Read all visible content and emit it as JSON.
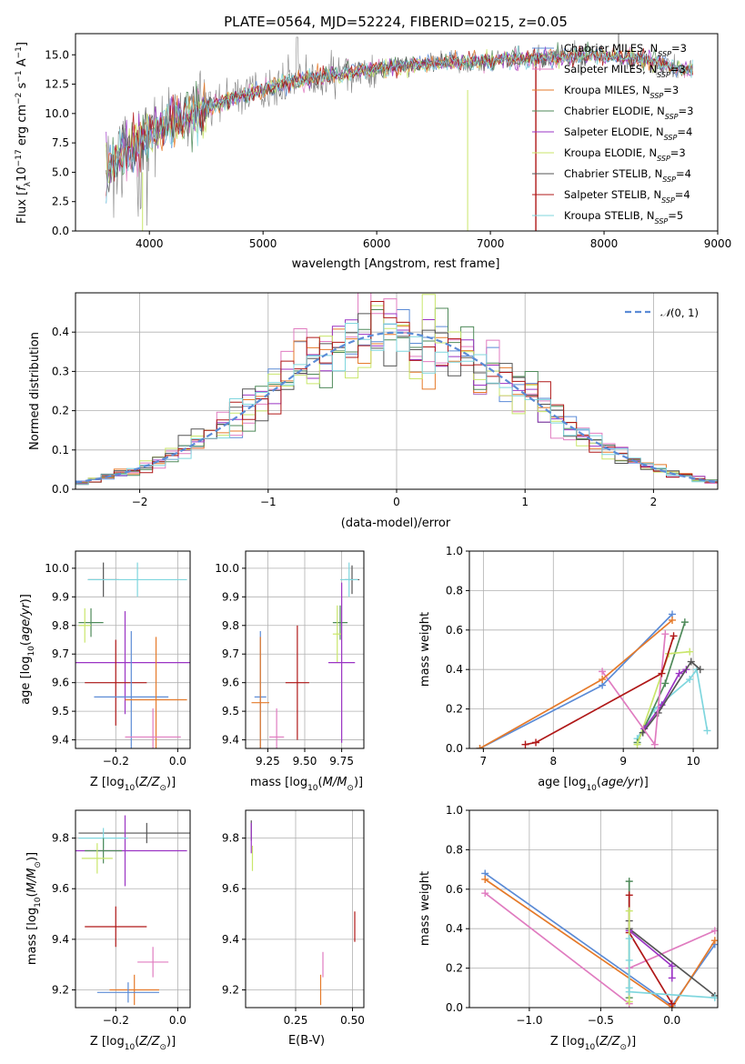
{
  "figure": {
    "title": "PLATE=0564, MJD=52224, FIBERID=0215, z=0.05"
  },
  "colors": {
    "Chabrier MILES": "#5b8bd6",
    "Salpeter MILES": "#e07cc0",
    "Kroupa MILES": "#e57a2a",
    "Chabrier ELODIE": "#4f8a5a",
    "Salpeter ELODIE": "#9b34c4",
    "Kroupa ELODIE": "#c9e66b",
    "Chabrier STELIB": "#555555",
    "Salpeter STELIB": "#b01818",
    "Kroupa STELIB": "#7fd6de"
  },
  "chart_data": [
    {
      "type": "line",
      "id": "spectrum",
      "xlabel": "wavelength [Angstrom, rest frame]",
      "ylabel": "Flux [f_λ 10^-17 erg cm^-2 s^-1 A^-1]",
      "xlim": [
        3350,
        9000
      ],
      "ylim": [
        0,
        16.8
      ],
      "xticks": [
        4000,
        5000,
        6000,
        7000,
        8000,
        9000
      ],
      "yticks": [
        0.0,
        2.5,
        5.0,
        7.5,
        10.0,
        12.5,
        15.0
      ],
      "legend_location": "top-right",
      "data_series": {
        "name": "data",
        "color": "#808080"
      },
      "continuum": {
        "x": [
          3600,
          3800,
          4000,
          4200,
          4400,
          4600,
          4800,
          5000,
          5200,
          5400,
          5600,
          5800,
          6000,
          6200,
          6400,
          6600,
          6800,
          7000,
          7200,
          7400,
          7600,
          7800,
          8000,
          8200,
          8400,
          8600,
          8800
        ],
        "y": [
          5.2,
          7.0,
          8.3,
          9.3,
          10.0,
          10.8,
          11.5,
          12.0,
          12.5,
          12.9,
          13.3,
          13.6,
          13.8,
          14.0,
          14.2,
          14.3,
          14.4,
          14.5,
          14.6,
          14.7,
          14.8,
          14.9,
          14.9,
          14.8,
          14.5,
          14.0,
          13.6
        ]
      },
      "series": [
        {
          "name": "Chabrier MILES",
          "nssp": "3"
        },
        {
          "name": "Salpeter MILES",
          "nssp": "3"
        },
        {
          "name": "Kroupa MILES",
          "nssp": "3"
        },
        {
          "name": "Chabrier ELODIE",
          "nssp": "3"
        },
        {
          "name": "Salpeter ELODIE",
          "nssp": "4"
        },
        {
          "name": "Kroupa ELODIE",
          "nssp": "3"
        },
        {
          "name": "Chabrier STELIB",
          "nssp": "4"
        },
        {
          "name": "Salpeter STELIB",
          "nssp": "4"
        },
        {
          "name": "Kroupa STELIB",
          "nssp": "5"
        }
      ]
    },
    {
      "type": "line",
      "id": "residuals",
      "xlabel": "(data-model)/error",
      "ylabel": "Normed distribution",
      "xlim": [
        -2.5,
        2.5
      ],
      "ylim": [
        0,
        0.5
      ],
      "xticks": [
        -2,
        -1,
        0,
        1,
        2
      ],
      "yticks": [
        0.0,
        0.1,
        0.2,
        0.3,
        0.4
      ],
      "grid": true,
      "legend_location": "top-right",
      "reference": {
        "name": "N(0,1)",
        "color": "#5b8bd6",
        "dash": true
      },
      "bin_width": 0.1,
      "bins_start": -2.5
    },
    {
      "type": "scatter",
      "id": "age_vs_Z",
      "xlabel": "Z [log10(Z/Z_sun)]",
      "ylabel": "age [log10(age/yr)]",
      "xlim": [
        -0.33,
        0.04
      ],
      "ylim": [
        9.37,
        10.06
      ],
      "xticks": [
        -0.2,
        0.0
      ],
      "yticks": [
        9.4,
        9.5,
        9.6,
        9.7,
        9.8,
        9.9,
        10.0
      ],
      "grid": true,
      "errorbars": [
        {
          "series": "Chabrier STELIB",
          "x": -0.24,
          "y": 9.96,
          "xerr": 0.05,
          "yerr": 0.06
        },
        {
          "series": "Kroupa STELIB",
          "x": -0.13,
          "y": 9.96,
          "xerr": 0.16,
          "yerr": 0.06
        },
        {
          "series": "Chabrier ELODIE",
          "x": -0.28,
          "y": 9.81,
          "xerr": 0.04,
          "yerr": 0.05
        },
        {
          "series": "Kroupa ELODIE",
          "x": -0.3,
          "y": 9.8,
          "xerr": 0.02,
          "yerr": 0.06
        },
        {
          "series": "Salpeter ELODIE",
          "x": -0.17,
          "y": 9.67,
          "xerr": 0.22,
          "yerr": 0.18
        },
        {
          "series": "Salpeter STELIB",
          "x": -0.2,
          "y": 9.6,
          "xerr": 0.1,
          "yerr": 0.15
        },
        {
          "series": "Chabrier MILES",
          "x": -0.15,
          "y": 9.55,
          "xerr": 0.12,
          "yerr": 0.23
        },
        {
          "series": "Kroupa MILES",
          "x": -0.07,
          "y": 9.54,
          "xerr": 0.1,
          "yerr": 0.22
        },
        {
          "series": "Salpeter MILES",
          "x": -0.08,
          "y": 9.41,
          "xerr": 0.09,
          "yerr": 0.1
        }
      ]
    },
    {
      "type": "scatter",
      "id": "age_vs_mass",
      "xlabel": "mass [log10(M/M_sun)]",
      "ylabel": "",
      "xlim": [
        9.1,
        9.9
      ],
      "ylim": [
        9.37,
        10.06
      ],
      "xticks": [
        9.25,
        9.5,
        9.75
      ],
      "yticks": [
        9.4,
        9.5,
        9.6,
        9.7,
        9.8,
        9.9,
        10.0
      ],
      "grid": true,
      "errorbars": [
        {
          "series": "Chabrier STELIB",
          "x": 9.82,
          "y": 9.96,
          "xerr": 0.05,
          "yerr": 0.05
        },
        {
          "series": "Kroupa STELIB",
          "x": 9.8,
          "y": 9.96,
          "xerr": 0.06,
          "yerr": 0.06
        },
        {
          "series": "Chabrier ELODIE",
          "x": 9.74,
          "y": 9.81,
          "xerr": 0.05,
          "yerr": 0.06
        },
        {
          "series": "Kroupa ELODIE",
          "x": 9.72,
          "y": 9.77,
          "xerr": 0.03,
          "yerr": 0.1
        },
        {
          "series": "Salpeter ELODIE",
          "x": 9.75,
          "y": 9.67,
          "xerr": 0.09,
          "yerr": 0.28
        },
        {
          "series": "Salpeter STELIB",
          "x": 9.45,
          "y": 9.6,
          "xerr": 0.08,
          "yerr": 0.2
        },
        {
          "series": "Chabrier MILES",
          "x": 9.2,
          "y": 9.55,
          "xerr": 0.04,
          "yerr": 0.23
        },
        {
          "series": "Kroupa MILES",
          "x": 9.2,
          "y": 9.53,
          "xerr": 0.06,
          "yerr": 0.23
        },
        {
          "series": "Salpeter MILES",
          "x": 9.31,
          "y": 9.41,
          "xerr": 0.05,
          "yerr": 0.1
        }
      ]
    },
    {
      "type": "line",
      "id": "massweight_vs_age",
      "xlabel": "age [log10(age/yr)]",
      "ylabel": "mass weight",
      "xlim": [
        6.8,
        10.35
      ],
      "ylim": [
        0,
        1
      ],
      "xticks": [
        7,
        8,
        9,
        10
      ],
      "yticks": [
        0.0,
        0.2,
        0.4,
        0.6,
        0.8,
        1.0
      ],
      "grid": true,
      "series": [
        {
          "series": "Kroupa STELIB",
          "points": [
            [
              9.2,
              0.05
            ],
            [
              9.45,
              0.2
            ],
            [
              9.95,
              0.35
            ],
            [
              10.05,
              0.4
            ],
            [
              10.2,
              0.09
            ]
          ]
        },
        {
          "series": "Chabrier ELODIE",
          "points": [
            [
              9.2,
              0.03
            ],
            [
              9.6,
              0.33
            ],
            [
              9.88,
              0.64
            ]
          ]
        },
        {
          "series": "Kroupa ELODIE",
          "points": [
            [
              9.2,
              0.02
            ],
            [
              9.65,
              0.48
            ],
            [
              9.95,
              0.49
            ]
          ]
        },
        {
          "series": "Salpeter ELODIE",
          "points": [
            [
              9.3,
              0.1
            ],
            [
              9.55,
              0.22
            ],
            [
              9.8,
              0.38
            ],
            [
              9.9,
              0.4
            ]
          ]
        },
        {
          "series": "Chabrier STELIB",
          "points": [
            [
              9.28,
              0.08
            ],
            [
              9.5,
              0.18
            ],
            [
              9.97,
              0.44
            ],
            [
              10.1,
              0.4
            ]
          ]
        },
        {
          "series": "Salpeter MILES",
          "points": [
            [
              8.7,
              0.39
            ],
            [
              9.45,
              0.02
            ],
            [
              9.6,
              0.58
            ]
          ]
        },
        {
          "series": "Chabrier MILES",
          "points": [
            [
              6.95,
              0.0
            ],
            [
              8.7,
              0.32
            ],
            [
              9.7,
              0.68
            ]
          ]
        },
        {
          "series": "Kroupa MILES",
          "points": [
            [
              6.95,
              0.0
            ],
            [
              8.7,
              0.35
            ],
            [
              9.7,
              0.65
            ]
          ]
        },
        {
          "series": "Salpeter STELIB",
          "points": [
            [
              7.6,
              0.02
            ],
            [
              7.75,
              0.03
            ],
            [
              9.55,
              0.38
            ],
            [
              9.72,
              0.57
            ]
          ]
        }
      ]
    },
    {
      "type": "scatter",
      "id": "mass_vs_Z",
      "xlabel": "Z [log10(Z/Z_sun)]",
      "ylabel": "mass [log10(M/M_sun)]",
      "xlim": [
        -0.33,
        0.04
      ],
      "ylim": [
        9.13,
        9.91
      ],
      "xticks": [
        -0.2,
        0.0
      ],
      "yticks": [
        9.2,
        9.4,
        9.6,
        9.8
      ],
      "grid": true,
      "errorbars": [
        {
          "series": "Chabrier STELIB",
          "x": -0.1,
          "y": 9.82,
          "xerr": 0.22,
          "yerr": 0.04
        },
        {
          "series": "Salpeter ELODIE",
          "x": -0.17,
          "y": 9.75,
          "xerr": 0.2,
          "yerr": 0.14
        },
        {
          "series": "Kroupa STELIB",
          "x": -0.24,
          "y": 9.8,
          "xerr": 0.08,
          "yerr": 0.04
        },
        {
          "series": "Chabrier ELODIE",
          "x": -0.24,
          "y": 9.75,
          "xerr": 0.06,
          "yerr": 0.05
        },
        {
          "series": "Kroupa ELODIE",
          "x": -0.26,
          "y": 9.72,
          "xerr": 0.05,
          "yerr": 0.06
        },
        {
          "series": "Salpeter STELIB",
          "x": -0.2,
          "y": 9.45,
          "xerr": 0.1,
          "yerr": 0.08
        },
        {
          "series": "Salpeter MILES",
          "x": -0.08,
          "y": 9.31,
          "xerr": 0.05,
          "yerr": 0.06
        },
        {
          "series": "Kroupa MILES",
          "x": -0.14,
          "y": 9.2,
          "xerr": 0.08,
          "yerr": 0.06
        },
        {
          "series": "Chabrier MILES",
          "x": -0.16,
          "y": 9.19,
          "xerr": 0.1,
          "yerr": 0.04
        }
      ]
    },
    {
      "type": "scatter",
      "id": "mass_vs_EBV",
      "xlabel": "E(B-V)",
      "ylabel": "",
      "xlim": [
        0.03,
        0.55
      ],
      "ylim": [
        9.13,
        9.91
      ],
      "xticks": [
        0.25,
        0.5
      ],
      "yticks": [
        9.2,
        9.4,
        9.6,
        9.8
      ],
      "grid": true,
      "errorbars": [
        {
          "series": "Chabrier STELIB",
          "x": 0.055,
          "y": 9.83,
          "xerr": 0,
          "yerr": 0.04
        },
        {
          "series": "Salpeter ELODIE",
          "x": 0.055,
          "y": 9.8,
          "xerr": 0,
          "yerr": 0.06
        },
        {
          "series": "Kroupa ELODIE",
          "x": 0.06,
          "y": 9.72,
          "xerr": 0,
          "yerr": 0.05
        },
        {
          "series": "Salpeter STELIB",
          "x": 0.51,
          "y": 9.45,
          "xerr": 0,
          "yerr": 0.06
        },
        {
          "series": "Salpeter MILES",
          "x": 0.37,
          "y": 9.3,
          "xerr": 0,
          "yerr": 0.05
        },
        {
          "series": "Kroupa MILES",
          "x": 0.36,
          "y": 9.2,
          "xerr": 0,
          "yerr": 0.06
        }
      ]
    },
    {
      "type": "line",
      "id": "massweight_vs_Z",
      "xlabel": "Z [log10(Z/Z_sun)]",
      "ylabel": "mass weight",
      "xlim": [
        -1.42,
        0.32
      ],
      "ylim": [
        0,
        1
      ],
      "xticks": [
        -1.0,
        -0.5,
        0.0
      ],
      "yticks": [
        0.0,
        0.2,
        0.4,
        0.6,
        0.8,
        1.0
      ],
      "grid": true,
      "series": [
        {
          "series": "Chabrier MILES",
          "points": [
            [
              -1.31,
              0.68
            ],
            [
              0.0,
              0.01
            ],
            [
              0.3,
              0.32
            ]
          ]
        },
        {
          "series": "Kroupa MILES",
          "points": [
            [
              -1.31,
              0.65
            ],
            [
              0.0,
              0.0
            ],
            [
              0.3,
              0.34
            ]
          ]
        },
        {
          "series": "Salpeter MILES",
          "points": [
            [
              -1.31,
              0.58
            ],
            [
              -0.3,
              0.02
            ],
            [
              -0.3,
              0.2
            ],
            [
              0.3,
              0.39
            ]
          ]
        },
        {
          "series": "Chabrier ELODIE",
          "points": [
            [
              -0.3,
              0.64
            ],
            [
              -0.3,
              0.05
            ]
          ]
        },
        {
          "series": "Salpeter STELIB",
          "points": [
            [
              -0.3,
              0.57
            ],
            [
              -0.3,
              0.38
            ],
            [
              0.0,
              0.02
            ]
          ]
        },
        {
          "series": "Chabrier STELIB",
          "points": [
            [
              -0.3,
              0.44
            ],
            [
              -0.3,
              0.4
            ],
            [
              0.3,
              0.06
            ]
          ]
        },
        {
          "series": "Salpeter ELODIE",
          "points": [
            [
              -0.3,
              0.39
            ],
            [
              0.0,
              0.21
            ],
            [
              0.0,
              0.15
            ]
          ]
        },
        {
          "series": "Kroupa ELODIE",
          "points": [
            [
              -0.3,
              0.49
            ],
            [
              -0.3,
              0.03
            ]
          ]
        },
        {
          "series": "Kroupa STELIB",
          "points": [
            [
              -0.3,
              0.35
            ],
            [
              -0.3,
              0.24
            ],
            [
              -0.3,
              0.1
            ],
            [
              -0.3,
              0.08
            ],
            [
              0.3,
              0.05
            ]
          ]
        }
      ]
    }
  ]
}
